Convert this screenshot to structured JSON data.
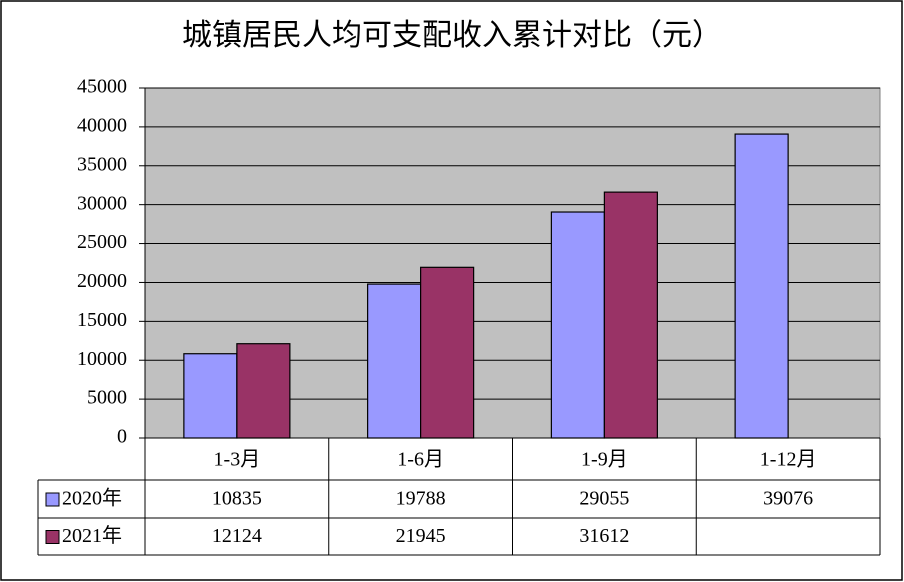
{
  "chart_data": {
    "type": "bar",
    "title": "城镇居民人均可支配收入累计对比（元）",
    "categories": [
      "1-3月",
      "1-6月",
      "1-9月",
      "1-12月"
    ],
    "series": [
      {
        "name": "2020年",
        "color": "#9999ff",
        "values": [
          10835,
          19788,
          29055,
          39076
        ]
      },
      {
        "name": "2021年",
        "color": "#993366",
        "values": [
          12124,
          21945,
          31612,
          null
        ]
      }
    ],
    "ylim": [
      0,
      45000
    ],
    "yticks": [
      0,
      5000,
      10000,
      15000,
      20000,
      25000,
      30000,
      35000,
      40000,
      45000
    ],
    "grid": true,
    "plot_background": "#c0c0c0"
  }
}
